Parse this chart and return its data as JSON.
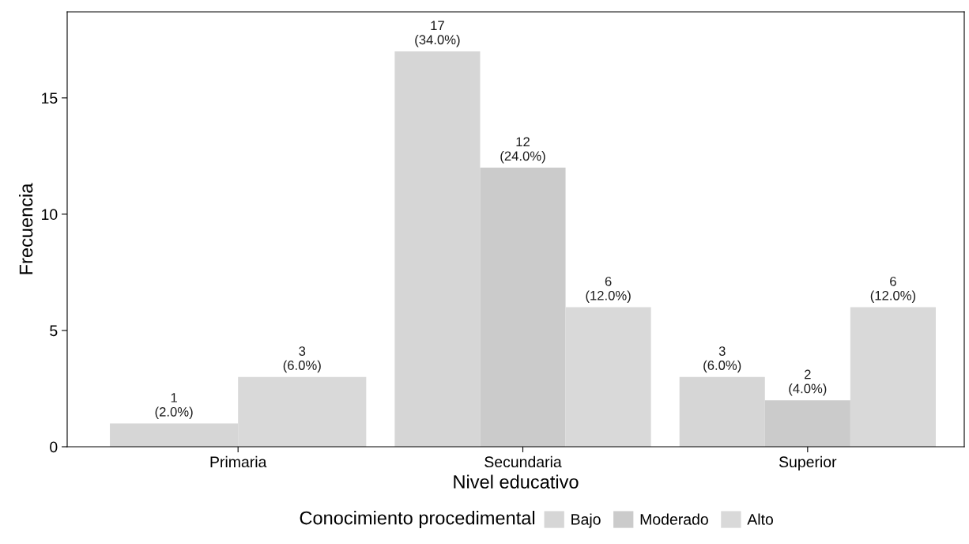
{
  "chart_data": {
    "type": "bar",
    "xlabel": "Nivel educativo",
    "ylabel": "Frecuencia",
    "legend_title": "Conocimiento procedimental",
    "categories": [
      "Primaria",
      "Secundaria",
      "Superior"
    ],
    "series": [
      {
        "name": "Bajo",
        "color": "#d6d6d6",
        "values": [
          1,
          17,
          3
        ],
        "value_labels": [
          "1\n(2.0%)",
          "17\n(34.0%)",
          "3\n(6.0%)"
        ]
      },
      {
        "name": "Moderado",
        "color": "#cbcbcb",
        "values": [
          null,
          12,
          2
        ],
        "value_labels": [
          null,
          "12\n(24.0%)",
          "2\n(4.0%)"
        ]
      },
      {
        "name": "Alto",
        "color": "#d9d9d9",
        "values": [
          3,
          6,
          6
        ],
        "value_labels": [
          "3\n(6.0%)",
          "6\n(12.0%)",
          "6\n(12.0%)"
        ]
      }
    ],
    "ylim": [
      0,
      18.7
    ],
    "yticks": [
      0,
      5,
      10,
      15
    ],
    "grid": false,
    "legend": "bottom"
  }
}
